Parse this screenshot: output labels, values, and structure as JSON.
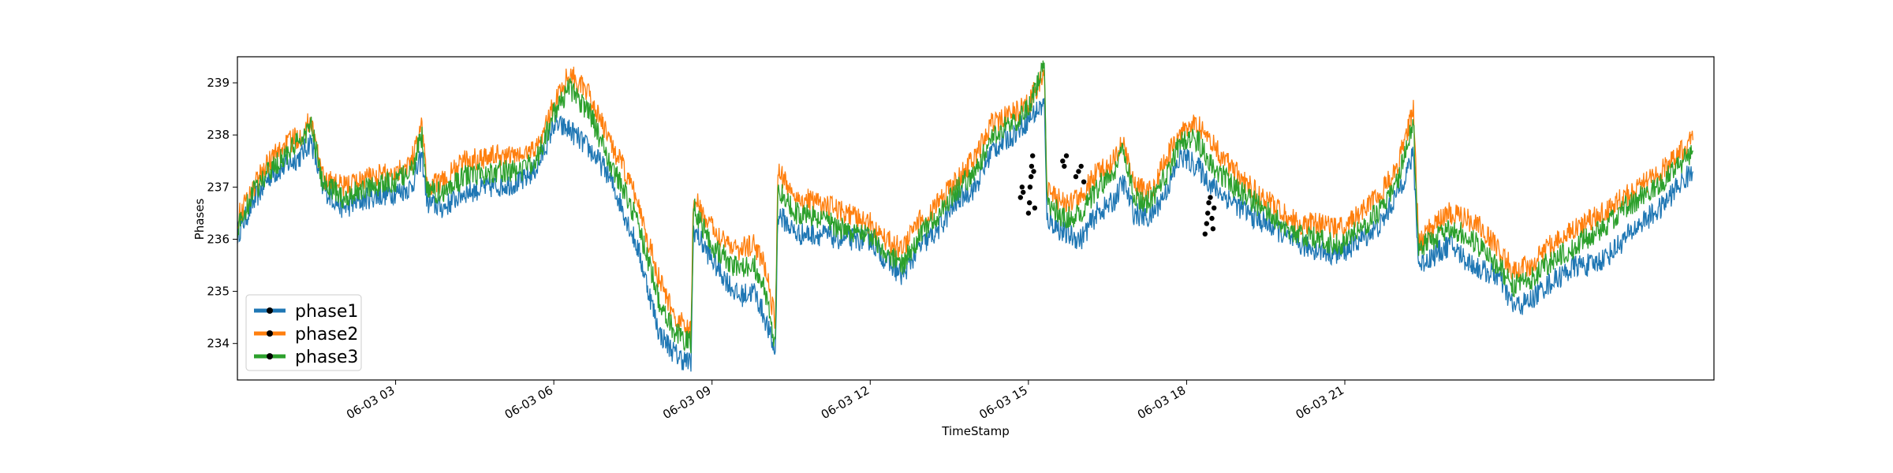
{
  "chart_data": {
    "type": "line",
    "title": "",
    "xlabel": "TimeStamp",
    "ylabel": "Phases",
    "xlim": [
      "06-03 00:00",
      "06-03 24:00"
    ],
    "ylim": [
      233.3,
      239.5
    ],
    "grid": false,
    "legend_position": "lower-left",
    "x_ticks": [
      {
        "hour": 3,
        "label": "06-03 03"
      },
      {
        "hour": 6,
        "label": "06-03 06"
      },
      {
        "hour": 9,
        "label": "06-03 09"
      },
      {
        "hour": 12,
        "label": "06-03 12"
      },
      {
        "hour": 15,
        "label": "06-03 15"
      },
      {
        "hour": 18,
        "label": "06-03 18"
      },
      {
        "hour": 21,
        "label": "06-03 21"
      }
    ],
    "y_ticks": [
      234,
      235,
      236,
      237,
      238,
      239
    ],
    "series": [
      {
        "name": "phase1",
        "color": "#1f77b4",
        "points": [
          [
            0.0,
            236.1
          ],
          [
            0.3,
            236.7
          ],
          [
            0.6,
            237.2
          ],
          [
            0.9,
            237.4
          ],
          [
            1.2,
            237.6
          ],
          [
            1.4,
            237.9
          ],
          [
            1.6,
            237.0
          ],
          [
            2.0,
            236.6
          ],
          [
            2.5,
            236.8
          ],
          [
            3.0,
            236.9
          ],
          [
            3.3,
            237.0
          ],
          [
            3.5,
            237.6
          ],
          [
            3.6,
            236.7
          ],
          [
            3.9,
            236.6
          ],
          [
            4.3,
            236.9
          ],
          [
            4.8,
            237.0
          ],
          [
            5.4,
            237.1
          ],
          [
            5.7,
            237.4
          ],
          [
            6.0,
            238.2
          ],
          [
            6.3,
            238.1
          ],
          [
            6.7,
            237.7
          ],
          [
            7.0,
            237.3
          ],
          [
            7.3,
            236.6
          ],
          [
            7.6,
            235.8
          ],
          [
            8.0,
            234.2
          ],
          [
            8.3,
            233.8
          ],
          [
            8.6,
            233.6
          ],
          [
            8.65,
            236.2
          ],
          [
            9.0,
            235.6
          ],
          [
            9.5,
            234.9
          ],
          [
            9.8,
            235.0
          ],
          [
            10.0,
            234.5
          ],
          [
            10.2,
            233.8
          ],
          [
            10.25,
            236.5
          ],
          [
            10.6,
            236.1
          ],
          [
            11.0,
            236.1
          ],
          [
            11.5,
            236.0
          ],
          [
            12.0,
            236.0
          ],
          [
            12.3,
            235.6
          ],
          [
            12.6,
            235.3
          ],
          [
            12.9,
            235.8
          ],
          [
            13.3,
            236.2
          ],
          [
            13.7,
            236.8
          ],
          [
            14.0,
            237.0
          ],
          [
            14.3,
            237.7
          ],
          [
            14.7,
            238.0
          ],
          [
            15.0,
            238.3
          ],
          [
            15.3,
            238.6
          ],
          [
            15.35,
            236.4
          ],
          [
            15.7,
            236.1
          ],
          [
            16.0,
            236.0
          ],
          [
            16.3,
            236.5
          ],
          [
            16.6,
            236.7
          ],
          [
            16.8,
            237.1
          ],
          [
            17.0,
            236.5
          ],
          [
            17.3,
            236.4
          ],
          [
            17.6,
            236.9
          ],
          [
            17.9,
            237.6
          ],
          [
            18.2,
            237.4
          ],
          [
            18.5,
            237.0
          ],
          [
            18.9,
            236.7
          ],
          [
            19.3,
            236.4
          ],
          [
            19.7,
            236.2
          ],
          [
            20.1,
            235.9
          ],
          [
            20.5,
            235.8
          ],
          [
            20.9,
            235.7
          ],
          [
            21.3,
            236.0
          ],
          [
            21.7,
            236.3
          ],
          [
            22.0,
            236.9
          ],
          [
            22.3,
            237.6
          ],
          [
            22.4,
            235.5
          ],
          [
            22.7,
            235.7
          ],
          [
            23.0,
            235.9
          ],
          [
            23.3,
            235.6
          ],
          [
            23.6,
            235.4
          ],
          [
            23.9,
            235.3
          ],
          [
            24.2,
            234.7
          ],
          [
            24.5,
            234.8
          ],
          [
            24.8,
            235.1
          ],
          [
            25.1,
            235.3
          ],
          [
            25.4,
            235.5
          ],
          [
            25.7,
            235.5
          ],
          [
            26.0,
            235.7
          ],
          [
            26.3,
            236.0
          ],
          [
            26.6,
            236.3
          ],
          [
            27.0,
            236.6
          ],
          [
            27.3,
            237.0
          ],
          [
            27.6,
            237.3
          ]
        ]
      },
      {
        "name": "phase2",
        "color": "#ff7f0e",
        "points": [
          [
            0.0,
            236.4
          ],
          [
            0.3,
            237.0
          ],
          [
            0.6,
            237.5
          ],
          [
            0.9,
            237.8
          ],
          [
            1.2,
            238.0
          ],
          [
            1.4,
            238.3
          ],
          [
            1.6,
            237.2
          ],
          [
            2.0,
            237.0
          ],
          [
            2.5,
            237.2
          ],
          [
            3.0,
            237.3
          ],
          [
            3.3,
            237.5
          ],
          [
            3.5,
            238.2
          ],
          [
            3.6,
            237.0
          ],
          [
            3.9,
            237.1
          ],
          [
            4.3,
            237.5
          ],
          [
            4.8,
            237.6
          ],
          [
            5.4,
            237.6
          ],
          [
            5.7,
            237.8
          ],
          [
            6.0,
            238.6
          ],
          [
            6.3,
            239.2
          ],
          [
            6.7,
            238.7
          ],
          [
            7.0,
            238.0
          ],
          [
            7.3,
            237.4
          ],
          [
            7.6,
            236.7
          ],
          [
            8.0,
            235.2
          ],
          [
            8.3,
            234.5
          ],
          [
            8.6,
            234.2
          ],
          [
            8.65,
            236.8
          ],
          [
            9.0,
            236.2
          ],
          [
            9.5,
            235.8
          ],
          [
            9.8,
            235.9
          ],
          [
            10.0,
            235.5
          ],
          [
            10.2,
            234.4
          ],
          [
            10.25,
            237.3
          ],
          [
            10.6,
            236.8
          ],
          [
            11.0,
            236.7
          ],
          [
            11.5,
            236.5
          ],
          [
            12.0,
            236.3
          ],
          [
            12.3,
            236.0
          ],
          [
            12.6,
            235.8
          ],
          [
            12.9,
            236.3
          ],
          [
            13.3,
            236.7
          ],
          [
            13.7,
            237.2
          ],
          [
            14.0,
            237.6
          ],
          [
            14.3,
            238.2
          ],
          [
            14.7,
            238.4
          ],
          [
            15.0,
            238.6
          ],
          [
            15.3,
            239.2
          ],
          [
            15.35,
            236.9
          ],
          [
            15.7,
            236.7
          ],
          [
            16.0,
            236.8
          ],
          [
            16.3,
            237.3
          ],
          [
            16.6,
            237.5
          ],
          [
            16.8,
            237.9
          ],
          [
            17.0,
            237.0
          ],
          [
            17.3,
            236.9
          ],
          [
            17.6,
            237.5
          ],
          [
            17.9,
            238.1
          ],
          [
            18.2,
            238.2
          ],
          [
            18.5,
            237.8
          ],
          [
            18.9,
            237.3
          ],
          [
            19.3,
            236.9
          ],
          [
            19.7,
            236.6
          ],
          [
            20.1,
            236.3
          ],
          [
            20.5,
            236.3
          ],
          [
            20.9,
            236.2
          ],
          [
            21.3,
            236.5
          ],
          [
            21.7,
            236.9
          ],
          [
            22.0,
            237.4
          ],
          [
            22.3,
            238.5
          ],
          [
            22.4,
            235.9
          ],
          [
            22.7,
            236.3
          ],
          [
            23.0,
            236.5
          ],
          [
            23.3,
            236.4
          ],
          [
            23.6,
            236.2
          ],
          [
            23.9,
            235.8
          ],
          [
            24.2,
            235.4
          ],
          [
            24.5,
            235.5
          ],
          [
            24.8,
            235.8
          ],
          [
            25.1,
            236.0
          ],
          [
            25.4,
            236.2
          ],
          [
            25.7,
            236.4
          ],
          [
            26.0,
            236.6
          ],
          [
            26.3,
            236.8
          ],
          [
            26.6,
            237.0
          ],
          [
            27.0,
            237.3
          ],
          [
            27.3,
            237.6
          ],
          [
            27.6,
            237.9
          ]
        ]
      },
      {
        "name": "phase3",
        "color": "#2ca02c",
        "points": [
          [
            0.0,
            236.2
          ],
          [
            0.3,
            236.9
          ],
          [
            0.6,
            237.3
          ],
          [
            0.9,
            237.6
          ],
          [
            1.2,
            237.9
          ],
          [
            1.4,
            238.2
          ],
          [
            1.6,
            237.1
          ],
          [
            2.0,
            236.8
          ],
          [
            2.5,
            237.0
          ],
          [
            3.0,
            237.1
          ],
          [
            3.3,
            237.3
          ],
          [
            3.5,
            238.0
          ],
          [
            3.6,
            236.9
          ],
          [
            3.9,
            236.9
          ],
          [
            4.3,
            237.2
          ],
          [
            4.8,
            237.3
          ],
          [
            5.4,
            237.3
          ],
          [
            5.7,
            237.6
          ],
          [
            6.0,
            238.4
          ],
          [
            6.3,
            238.9
          ],
          [
            6.7,
            238.4
          ],
          [
            7.0,
            237.6
          ],
          [
            7.3,
            237.0
          ],
          [
            7.6,
            236.3
          ],
          [
            8.0,
            234.8
          ],
          [
            8.3,
            234.2
          ],
          [
            8.6,
            234.0
          ],
          [
            8.65,
            236.6
          ],
          [
            9.0,
            235.9
          ],
          [
            9.5,
            235.4
          ],
          [
            9.8,
            235.5
          ],
          [
            10.0,
            235.0
          ],
          [
            10.2,
            233.9
          ],
          [
            10.25,
            237.0
          ],
          [
            10.6,
            236.5
          ],
          [
            11.0,
            236.4
          ],
          [
            11.5,
            236.2
          ],
          [
            12.0,
            236.1
          ],
          [
            12.3,
            235.7
          ],
          [
            12.6,
            235.5
          ],
          [
            12.9,
            236.0
          ],
          [
            13.3,
            236.5
          ],
          [
            13.7,
            237.0
          ],
          [
            14.0,
            237.3
          ],
          [
            14.3,
            238.0
          ],
          [
            14.7,
            238.2
          ],
          [
            15.0,
            238.5
          ],
          [
            15.3,
            239.4
          ],
          [
            15.35,
            236.7
          ],
          [
            15.7,
            236.4
          ],
          [
            16.0,
            236.5
          ],
          [
            16.3,
            237.0
          ],
          [
            16.6,
            237.2
          ],
          [
            16.8,
            237.8
          ],
          [
            17.0,
            236.8
          ],
          [
            17.3,
            236.7
          ],
          [
            17.6,
            237.2
          ],
          [
            17.9,
            237.9
          ],
          [
            18.2,
            237.9
          ],
          [
            18.5,
            237.4
          ],
          [
            18.9,
            237.0
          ],
          [
            19.3,
            236.7
          ],
          [
            19.7,
            236.4
          ],
          [
            20.1,
            236.1
          ],
          [
            20.5,
            236.0
          ],
          [
            20.9,
            235.9
          ],
          [
            21.3,
            236.2
          ],
          [
            21.7,
            236.6
          ],
          [
            22.0,
            237.1
          ],
          [
            22.3,
            238.3
          ],
          [
            22.4,
            235.8
          ],
          [
            22.7,
            236.0
          ],
          [
            23.0,
            236.2
          ],
          [
            23.3,
            236.1
          ],
          [
            23.6,
            235.8
          ],
          [
            23.9,
            235.5
          ],
          [
            24.2,
            235.1
          ],
          [
            24.5,
            235.2
          ],
          [
            24.8,
            235.5
          ],
          [
            25.1,
            235.7
          ],
          [
            25.4,
            235.9
          ],
          [
            25.7,
            236.1
          ],
          [
            26.0,
            236.3
          ],
          [
            26.3,
            236.6
          ],
          [
            26.6,
            236.8
          ],
          [
            27.0,
            237.1
          ],
          [
            27.3,
            237.4
          ],
          [
            27.6,
            237.7
          ]
        ]
      }
    ],
    "markers": [
      [
        14.85,
        236.8
      ],
      [
        14.88,
        237.0
      ],
      [
        14.9,
        236.9
      ],
      [
        15.0,
        236.5
      ],
      [
        15.02,
        236.7
      ],
      [
        15.03,
        237.0
      ],
      [
        15.05,
        237.2
      ],
      [
        15.06,
        237.4
      ],
      [
        15.08,
        237.6
      ],
      [
        15.1,
        237.3
      ],
      [
        15.12,
        236.6
      ],
      [
        15.65,
        237.5
      ],
      [
        15.68,
        237.4
      ],
      [
        15.72,
        237.6
      ],
      [
        15.9,
        237.2
      ],
      [
        15.95,
        237.3
      ],
      [
        16.0,
        237.4
      ],
      [
        16.05,
        237.1
      ],
      [
        18.35,
        236.1
      ],
      [
        18.38,
        236.3
      ],
      [
        18.4,
        236.5
      ],
      [
        18.42,
        236.7
      ],
      [
        18.45,
        236.8
      ],
      [
        18.48,
        236.4
      ],
      [
        18.5,
        236.2
      ],
      [
        18.52,
        236.6
      ]
    ]
  }
}
